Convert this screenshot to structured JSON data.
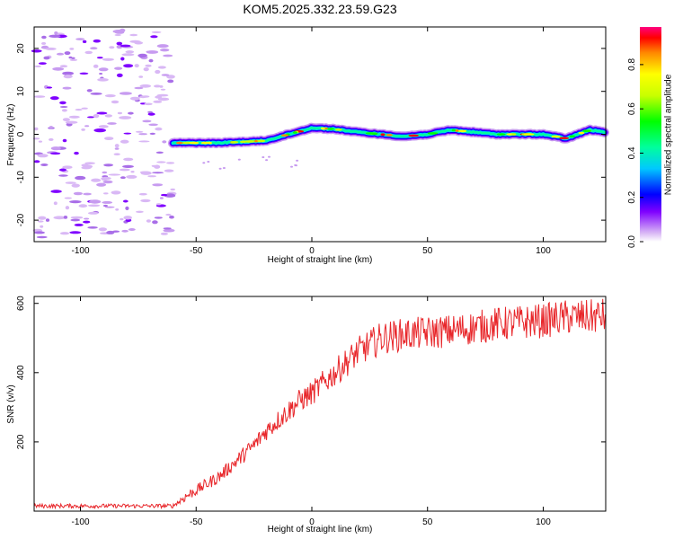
{
  "page": {
    "title": "KOM5.2025.332.23.59.G23"
  },
  "chart_data": [
    {
      "type": "heatmap",
      "title": "KOM5.2025.332.23.59.G23",
      "xlabel": "Height of straight line (km)",
      "ylabel": "Frequency (Hz)",
      "xlim": [
        -120,
        127
      ],
      "ylim": [
        -25,
        25
      ],
      "x_ticks": [
        -100,
        -50,
        0,
        50,
        100
      ],
      "y_ticks": [
        -20,
        -10,
        0,
        10,
        20
      ],
      "colorbar": {
        "label": "Normalized spectral amplitude",
        "range": [
          0,
          0.97
        ],
        "ticks": [
          0.0,
          0.2,
          0.4,
          0.6,
          0.8
        ]
      },
      "noise_region_x": [
        -120,
        -60
      ],
      "trace": {
        "description_points_x": [
          -60,
          -40,
          -20,
          -10,
          0,
          10,
          20,
          30,
          40,
          50,
          60,
          70,
          80,
          90,
          100,
          110,
          120,
          127
        ],
        "description_points_y": [
          -2,
          -2,
          -1.5,
          0,
          1.5,
          1.2,
          0.5,
          0,
          -0.5,
          0,
          1,
          0.5,
          0,
          0,
          0,
          -1,
          1,
          0.5
        ]
      }
    },
    {
      "type": "line",
      "xlabel": "Height of straight line (km)",
      "ylabel": "SNR (v/v)",
      "xlim": [
        -120,
        127
      ],
      "ylim": [
        0,
        620
      ],
      "x_ticks": [
        -100,
        -50,
        0,
        50,
        100
      ],
      "y_ticks": [
        200,
        400,
        600
      ],
      "series": [
        {
          "name": "SNR",
          "color": "#e8262a",
          "x": [
            -120,
            -100,
            -80,
            -60,
            -55,
            -50,
            -45,
            -40,
            -35,
            -30,
            -25,
            -20,
            -15,
            -10,
            -5,
            0,
            5,
            10,
            15,
            20,
            25,
            30,
            40,
            50,
            60,
            70,
            80,
            90,
            100,
            110,
            120,
            127
          ],
          "y": [
            15,
            15,
            15,
            15,
            40,
            60,
            80,
            100,
            130,
            160,
            190,
            230,
            260,
            290,
            320,
            340,
            370,
            400,
            430,
            460,
            480,
            500,
            510,
            515,
            520,
            530,
            540,
            545,
            550,
            560,
            560,
            565
          ]
        }
      ]
    }
  ]
}
